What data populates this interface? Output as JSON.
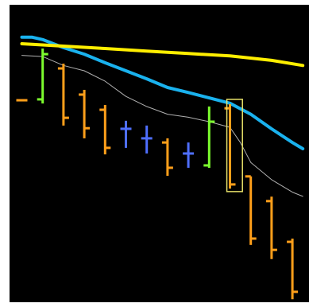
{
  "chart_data": {
    "type": "ohlc",
    "title": "",
    "xlabel": "",
    "ylabel": "",
    "grid": false,
    "legend": "none",
    "ylim": [
      0,
      100
    ],
    "xlim": [
      0,
      27
    ],
    "colors": {
      "background": "#000000",
      "bearish": "#ff9f1a",
      "bullish": "#7cfc2e",
      "doji": "#4f6fff",
      "ma_fast": "#b0b0b0",
      "ma_mid": "#1ab2ee",
      "ma_slow": "#ffee00",
      "highlight_box": "#e8e26a"
    },
    "bars": [
      {
        "x": 0,
        "open": 67.9,
        "high": 67.9,
        "low": 67.9,
        "close": 67.9,
        "kind": "bearish"
      },
      {
        "x": 2,
        "open": 68.2,
        "high": 85.3,
        "low": 66.8,
        "close": 83.4,
        "kind": "bullish"
      },
      {
        "x": 4,
        "open": 78.6,
        "high": 80.2,
        "low": 59.4,
        "close": 62.0,
        "kind": "bearish"
      },
      {
        "x": 6,
        "open": 69.8,
        "high": 71.4,
        "low": 55.1,
        "close": 58.5,
        "kind": "bearish"
      },
      {
        "x": 8,
        "open": 64.7,
        "high": 66.3,
        "low": 49.7,
        "close": 51.9,
        "kind": "bearish"
      },
      {
        "x": 10,
        "open": 58.3,
        "high": 61.0,
        "low": 51.9,
        "close": 58.3,
        "kind": "doji"
      },
      {
        "x": 12,
        "open": 55.1,
        "high": 59.4,
        "low": 50.0,
        "close": 55.1,
        "kind": "doji"
      },
      {
        "x": 14,
        "open": 53.7,
        "high": 55.1,
        "low": 42.5,
        "close": 45.2,
        "kind": "bearish"
      },
      {
        "x": 16,
        "open": 50.0,
        "high": 53.7,
        "low": 45.2,
        "close": 50.0,
        "kind": "doji"
      },
      {
        "x": 18,
        "open": 46.0,
        "high": 65.8,
        "low": 45.2,
        "close": 60.7,
        "kind": "bullish"
      },
      {
        "x": 20,
        "open": 65.2,
        "high": 66.6,
        "low": 38.2,
        "close": 39.6,
        "kind": "bearish"
      },
      {
        "x": 22,
        "open": 42.3,
        "high": 42.3,
        "low": 19.3,
        "close": 21.4,
        "kind": "bearish"
      },
      {
        "x": 24,
        "open": 34.0,
        "high": 35.5,
        "low": 14.5,
        "close": 17.6,
        "kind": "bearish"
      },
      {
        "x": 26,
        "open": 20.3,
        "high": 21.4,
        "low": 1.0,
        "close": 3.5,
        "kind": "bearish"
      }
    ],
    "highlight": {
      "x_from": 19.7,
      "x_to": 21.2,
      "y_from": 37.2,
      "y_to": 68.2
    },
    "series": [
      {
        "role": "ma_fast",
        "x": [
          0,
          2,
          4,
          6,
          8,
          10,
          12,
          14,
          16,
          18,
          20,
          21,
          22,
          24,
          26,
          27
        ],
        "values": [
          83.0,
          82.6,
          79.6,
          77.8,
          74.3,
          69.2,
          65.8,
          63.2,
          62.2,
          60.7,
          58.8,
          53.7,
          47.0,
          41.2,
          37.0,
          35.6
        ]
      },
      {
        "role": "ma_mid",
        "x": [
          0,
          1,
          2,
          4,
          6,
          8,
          10,
          12,
          14,
          16,
          18,
          20,
          22,
          24,
          26,
          27
        ],
        "values": [
          89.1,
          89.1,
          88.3,
          85.6,
          83.4,
          80.5,
          77.8,
          75.1,
          72.2,
          70.5,
          68.7,
          66.9,
          63.2,
          58.3,
          53.7,
          51.6
        ]
      },
      {
        "role": "ma_slow",
        "x": [
          0,
          4,
          8,
          12,
          16,
          20,
          24,
          27
        ],
        "values": [
          86.9,
          86.1,
          85.3,
          84.4,
          83.6,
          82.8,
          81.3,
          79.6
        ]
      }
    ]
  }
}
